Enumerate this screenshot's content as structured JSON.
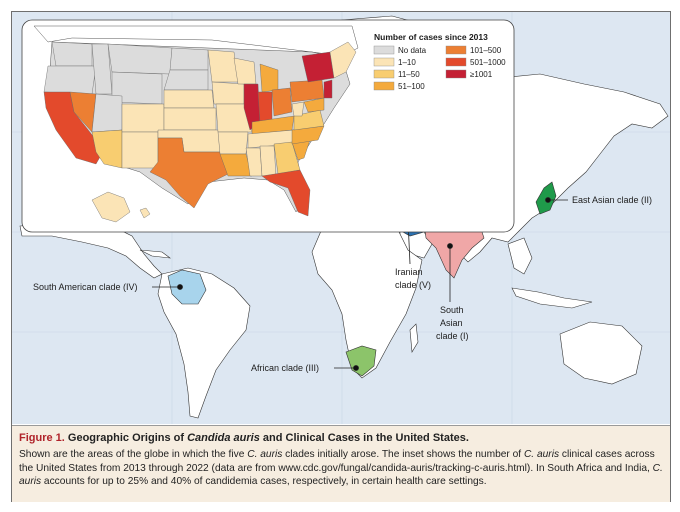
{
  "legend": {
    "title": "Number of cases since 2013",
    "items": [
      {
        "label": "No data",
        "color": "#dcdcdc"
      },
      {
        "label": "1–10",
        "color": "#fbe4b6"
      },
      {
        "label": "11–50",
        "color": "#f8cd70"
      },
      {
        "label": "51–100",
        "color": "#f4aa3d"
      },
      {
        "label": "101–500",
        "color": "#ec7f33"
      },
      {
        "label": "501–1000",
        "color": "#e34a2c"
      },
      {
        "label": "≥1001",
        "color": "#c42034"
      }
    ]
  },
  "clades": {
    "south_american": {
      "label": "South American clade (IV)",
      "color": "#a8d4ec"
    },
    "african": {
      "label": "African clade (III)",
      "color": "#8cc46a"
    },
    "iranian": {
      "label_line1": "Iranian",
      "label_line2": "clade (V)",
      "color": "#2a70b0"
    },
    "south_asian": {
      "label_line1": "South",
      "label_line2": "Asian",
      "label_line3": "clade (I)",
      "color": "#f0a7a7"
    },
    "east_asian": {
      "label": "East Asian clade (II)",
      "color": "#1f9a4a"
    }
  },
  "caption": {
    "figure_number": "Figure 1.",
    "title_pre": "Geographic Origins of ",
    "title_italic": "Candida auris",
    "title_post": " and Clinical Cases in the United States.",
    "s1_pre": "Shown are the areas of the globe in which the five ",
    "s1_italic": "C. auris",
    "s1_post": " clades initially arose. The inset shows the number of ",
    "s2_italic": "C. auris",
    "s2_post": " clinical cases across the United States from 2013 through 2022 (data are from www.cdc.gov/fungal/candida-auris/tracking-c-auris.html). In South Africa and India, ",
    "s3_italic": "C. auris",
    "s3_post": " accounts for up to 25% and 40% of candidemia cases, respectively, in certain health care settings."
  }
}
